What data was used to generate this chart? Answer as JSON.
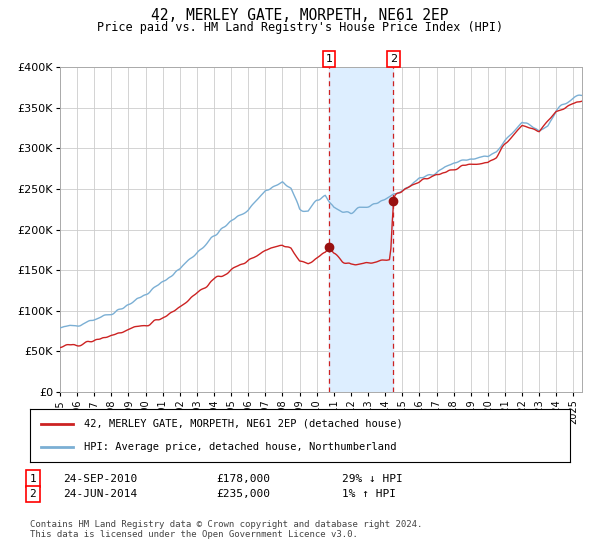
{
  "title": "42, MERLEY GATE, MORPETH, NE61 2EP",
  "subtitle": "Price paid vs. HM Land Registry's House Price Index (HPI)",
  "legend_line1": "42, MERLEY GATE, MORPETH, NE61 2EP (detached house)",
  "legend_line2": "HPI: Average price, detached house, Northumberland",
  "transaction1_date": "24-SEP-2010",
  "transaction1_price": 178000,
  "transaction1_label": "29% ↓ HPI",
  "transaction1_year": 2010.73,
  "transaction2_date": "24-JUN-2014",
  "transaction2_price": 235000,
  "transaction2_label": "1% ↑ HPI",
  "transaction2_year": 2014.48,
  "hpi_color": "#7bafd4",
  "price_color": "#cc2222",
  "marker_color": "#991111",
  "background_color": "#ffffff",
  "grid_color": "#cccccc",
  "shade_color": "#ddeeff",
  "footnote": "Contains HM Land Registry data © Crown copyright and database right 2024.\nThis data is licensed under the Open Government Licence v3.0.",
  "ylabel_ticks": [
    "£0",
    "£50K",
    "£100K",
    "£150K",
    "£200K",
    "£250K",
    "£300K",
    "£350K",
    "£400K"
  ],
  "ylabel_values": [
    0,
    50000,
    100000,
    150000,
    200000,
    250000,
    300000,
    350000,
    400000
  ],
  "xmin": 1995,
  "xmax": 2025.5,
  "ymin": 0,
  "ymax": 400000
}
